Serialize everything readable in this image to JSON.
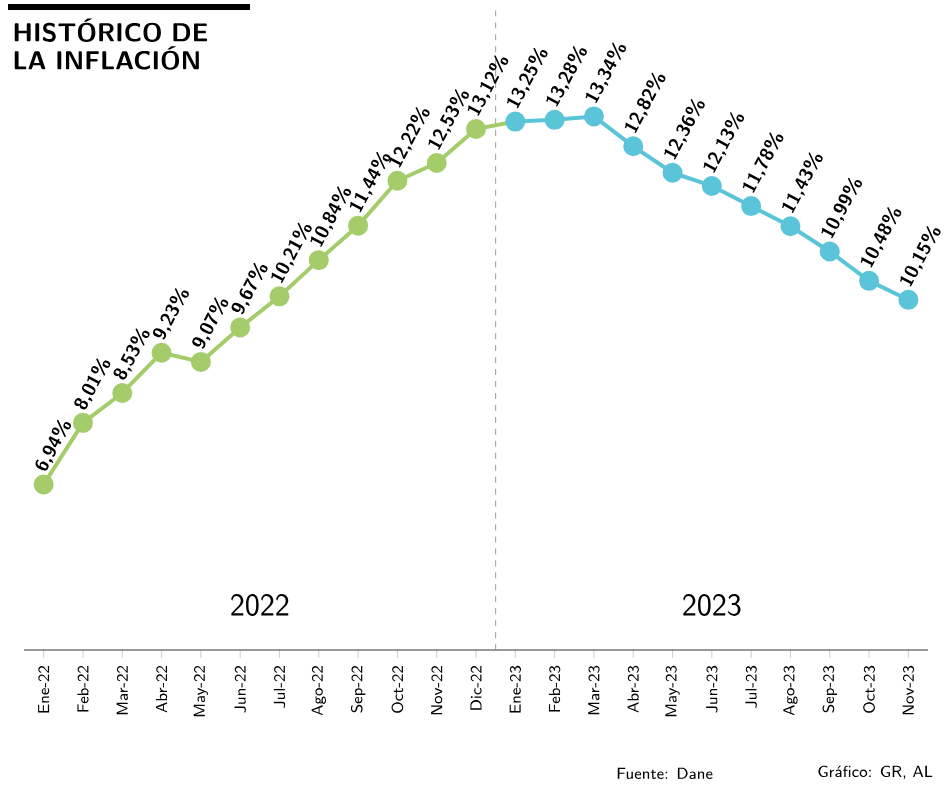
{
  "chart_data": {
    "type": "line",
    "title": "HISTÓRICO DE LA INFLACIÓN",
    "categories": [
      "Ene-22",
      "Feb-22",
      "Mar-22",
      "Abr-22",
      "May-22",
      "Jun-22",
      "Jul-22",
      "Ago-22",
      "Sep-22",
      "Oct-22",
      "Nov-22",
      "Dic-22",
      "Ene-23",
      "Feb-23",
      "Mar-23",
      "Abr-23",
      "May-23",
      "Jun-23",
      "Jul-23",
      "Ago-23",
      "Sep-23",
      "Oct-23",
      "Nov-23"
    ],
    "series": [
      {
        "color": "#a5cc6b",
        "values": [
          6.94,
          8.01,
          8.53,
          9.23,
          9.07,
          9.67,
          10.21,
          10.84,
          11.44,
          12.22,
          12.53,
          13.12,
          null,
          null,
          null,
          null,
          null,
          null,
          null,
          null,
          null,
          null,
          null
        ],
        "value_labels": [
          "6,94%",
          "8,01%",
          "8,53%",
          "9,23%",
          "9,07%",
          "9,67%",
          "10,21%",
          "10,84%",
          "11,44%",
          "12,22%",
          "12,53%",
          "13,12%",
          null,
          null,
          null,
          null,
          null,
          null,
          null,
          null,
          null,
          null,
          null
        ]
      },
      {
        "color": "#5bc4d9",
        "values": [
          null,
          null,
          null,
          null,
          null,
          null,
          null,
          null,
          null,
          null,
          null,
          null,
          13.25,
          13.28,
          13.34,
          12.82,
          12.36,
          12.13,
          11.78,
          11.43,
          10.99,
          10.48,
          10.15
        ],
        "value_labels": [
          null,
          null,
          null,
          null,
          null,
          null,
          null,
          null,
          null,
          null,
          null,
          null,
          "13,25%",
          "13,28%",
          "13,34%",
          "12,82%",
          "12,36%",
          "12,13%",
          "11,78%",
          "11,43%",
          "10,99%",
          "10,48%",
          "10,15%"
        ]
      }
    ],
    "annotations": [
      "2022",
      "2023",
      "Fuente: Dane",
      "Gráfico: GR, AL"
    ],
    "marker": "circle"
  }
}
